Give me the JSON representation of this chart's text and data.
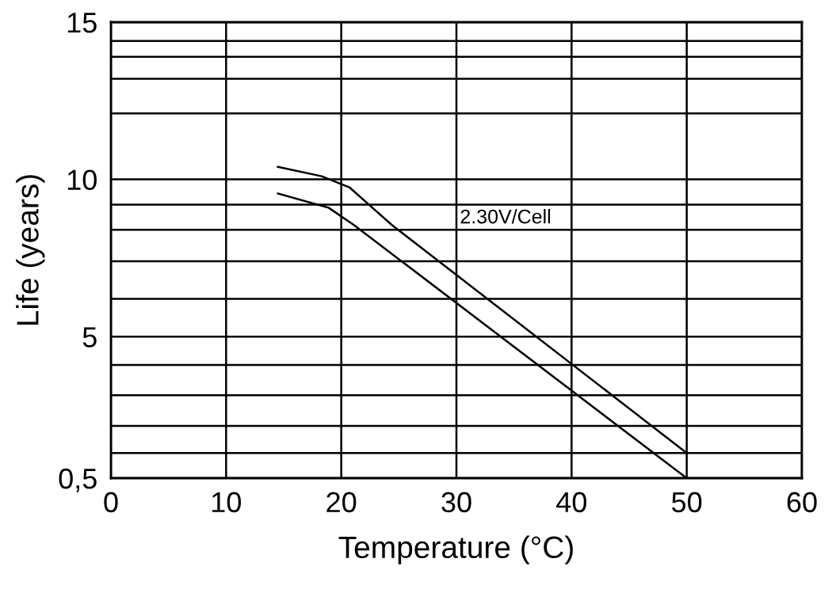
{
  "chart_data": {
    "type": "line",
    "xlabel": "Temperature (°C)",
    "ylabel": "Life (years)",
    "xlim": [
      0,
      60
    ],
    "xticks": [
      0,
      10,
      20,
      30,
      40,
      50,
      60
    ],
    "ylim": [
      0.5,
      15
    ],
    "yticks": [
      {
        "value": 0.5,
        "label": "0,5"
      },
      {
        "value": 1.3,
        "label": null
      },
      {
        "value": 2.16,
        "label": null
      },
      {
        "value": 3.14,
        "label": null
      },
      {
        "value": 4.1,
        "label": null
      },
      5,
      {
        "value": 6.2,
        "label": null
      },
      {
        "value": 7.4,
        "label": null
      },
      {
        "value": 8.4,
        "label": null
      },
      {
        "value": 9.2,
        "label": null
      },
      10,
      {
        "value": 12.1,
        "label": null
      },
      {
        "value": 13.2,
        "label": null
      },
      {
        "value": 13.9,
        "label": null
      },
      {
        "value": 14.4,
        "label": null
      },
      15
    ],
    "grid": true,
    "legend": false,
    "marker": "none",
    "line_style": "solid",
    "series": [
      {
        "color": "#000000",
        "x": [
          14.5,
          18.3,
          20.7,
          24.4,
          50
        ],
        "values": [
          10.4,
          10.1,
          9.75,
          8.55,
          1.3
        ]
      },
      {
        "color": "#000000",
        "x": [
          14.5,
          18.9,
          21.1,
          50
        ],
        "values": [
          9.55,
          9.1,
          8.55,
          0.5
        ]
      }
    ],
    "annotations": [
      "2.30V/Cell"
    ]
  }
}
